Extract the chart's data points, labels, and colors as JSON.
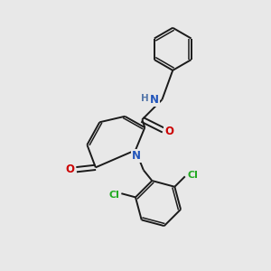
{
  "background_color": "#e8e8e8",
  "bond_color": "#1a1a1a",
  "atom_colors": {
    "N_amide": "#2255bb",
    "N_pyridine": "#2255bb",
    "O": "#cc0000",
    "Cl": "#22aa22",
    "H": "#5577aa",
    "C": "#1a1a1a"
  },
  "figsize": [
    3.0,
    3.0
  ],
  "dpi": 100
}
